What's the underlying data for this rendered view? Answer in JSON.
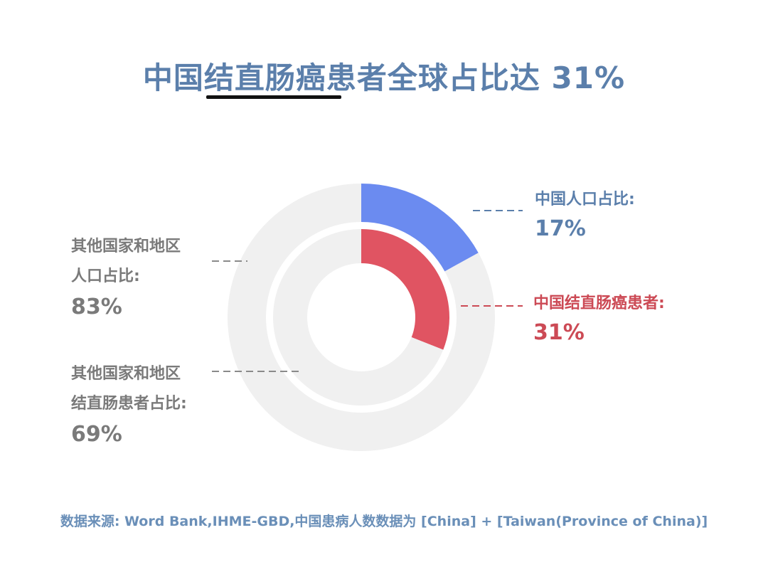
{
  "title": "中国结直肠癌患者全球占比达 31%",
  "chart_data": {
    "type": "pie",
    "subtype": "nested-donut",
    "series": [
      {
        "name": "人口占比",
        "ring": "outer",
        "slices": [
          {
            "label": "中国人口占比:",
            "value": 17,
            "display": "17%",
            "color": "#6b8bf0"
          },
          {
            "label": "其他国家和地区 人口占比:",
            "value": 83,
            "display": "83%",
            "color": "#f0f0f0"
          }
        ]
      },
      {
        "name": "结直肠患者占比",
        "ring": "inner",
        "slices": [
          {
            "label": "中国结直肠癌患者:",
            "value": 31,
            "display": "31%",
            "color": "#e05462"
          },
          {
            "label": "其他国家和地区 结直肠患者占比:",
            "value": 69,
            "display": "69%",
            "color": "#f0f0f0"
          }
        ]
      }
    ]
  },
  "labels": {
    "china_pop_title": "中国人口占比:",
    "china_pop_value": "17%",
    "china_crc_title": "中国结直肠癌患者:",
    "china_crc_value": "31%",
    "other_pop_line1": "其他国家和地区",
    "other_pop_line2": "人口占比:",
    "other_pop_value": "83%",
    "other_crc_line1": "其他国家和地区",
    "other_crc_line2": "结直肠患者占比:",
    "other_crc_value": "69%"
  },
  "source": "数据来源: Word Bank,IHME-GBD,中国患病人数数据为 [China] + [Taiwan(Province of China)]"
}
